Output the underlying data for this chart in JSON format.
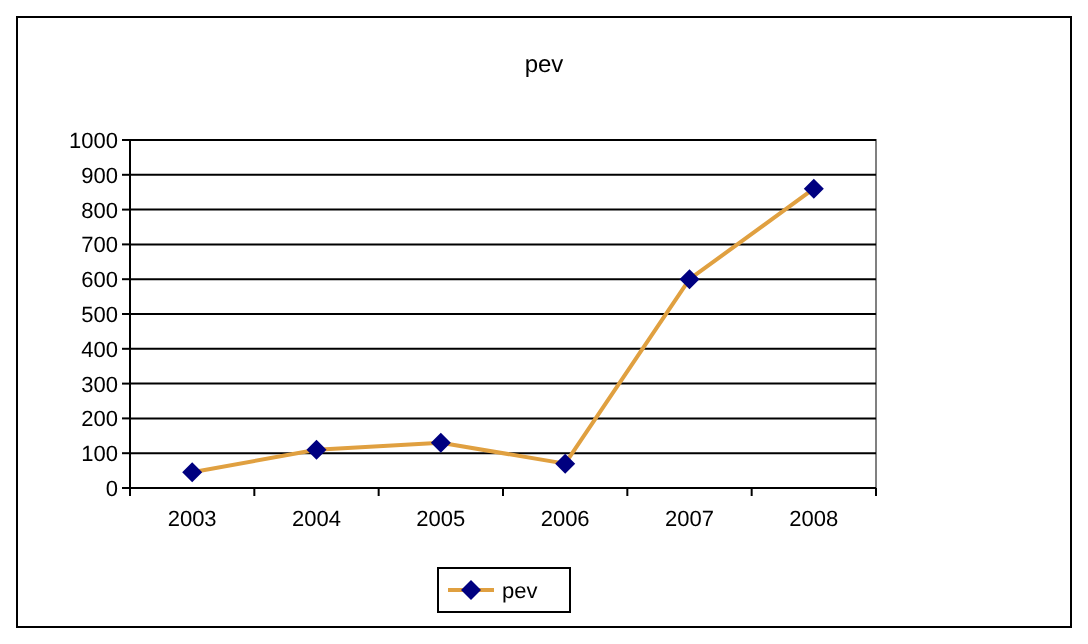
{
  "chart_data": {
    "type": "line",
    "title": "pev",
    "categories": [
      "2003",
      "2004",
      "2005",
      "2006",
      "2007",
      "2008"
    ],
    "series": [
      {
        "name": "pev",
        "color": "#e0a040",
        "values": [
          45,
          110,
          130,
          70,
          600,
          860
        ]
      }
    ],
    "ylim": [
      0,
      1000
    ],
    "yticks": [
      0,
      100,
      200,
      300,
      400,
      500,
      600,
      700,
      800,
      900,
      1000
    ],
    "grid": "y",
    "legend": "bottom",
    "marker": "diamond",
    "line_style": "solid"
  }
}
